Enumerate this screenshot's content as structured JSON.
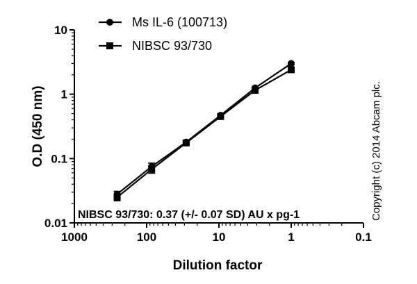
{
  "chart_data": {
    "type": "line",
    "xlabel": "Dilution factor",
    "ylabel": "O.D (450 nm)",
    "x_scale": "log",
    "y_scale": "log",
    "x_reversed": true,
    "xlim": [
      1000,
      0.1
    ],
    "ylim": [
      0.01,
      10
    ],
    "x_ticks": [
      1000,
      100,
      10,
      1,
      0.1
    ],
    "x_tick_labels": [
      "1000",
      "100",
      "10",
      "1",
      "0.1"
    ],
    "y_ticks": [
      0.01,
      0.1,
      1,
      10
    ],
    "y_tick_labels": [
      "0.01",
      "0.1",
      "1",
      "10"
    ],
    "grid": false,
    "legend_position": "top",
    "series": [
      {
        "name": "Ms IL-6 (100713)",
        "marker": "circle",
        "x": [
          256,
          85.3,
          28.4,
          9.48,
          3.16,
          1
        ],
        "y": [
          0.028,
          0.075,
          0.18,
          0.47,
          1.25,
          3.0
        ],
        "err": [
          0.003,
          0.01,
          0.01,
          0.02,
          0.05,
          0.1
        ]
      },
      {
        "name": "NIBSC 93/730",
        "marker": "square",
        "x": [
          256,
          85.3,
          28.4,
          9.48,
          3.16,
          1
        ],
        "y": [
          0.025,
          0.068,
          0.175,
          0.45,
          1.15,
          2.4
        ],
        "err": [
          0.003,
          0.009,
          0.01,
          0.02,
          0.04,
          0.1
        ]
      }
    ],
    "annotation": "NIBSC 93/730: 0.37 (+/- 0.07 SD) AU x pg-1",
    "copyright": "Copyright (c) 2014 Abcam plc."
  }
}
